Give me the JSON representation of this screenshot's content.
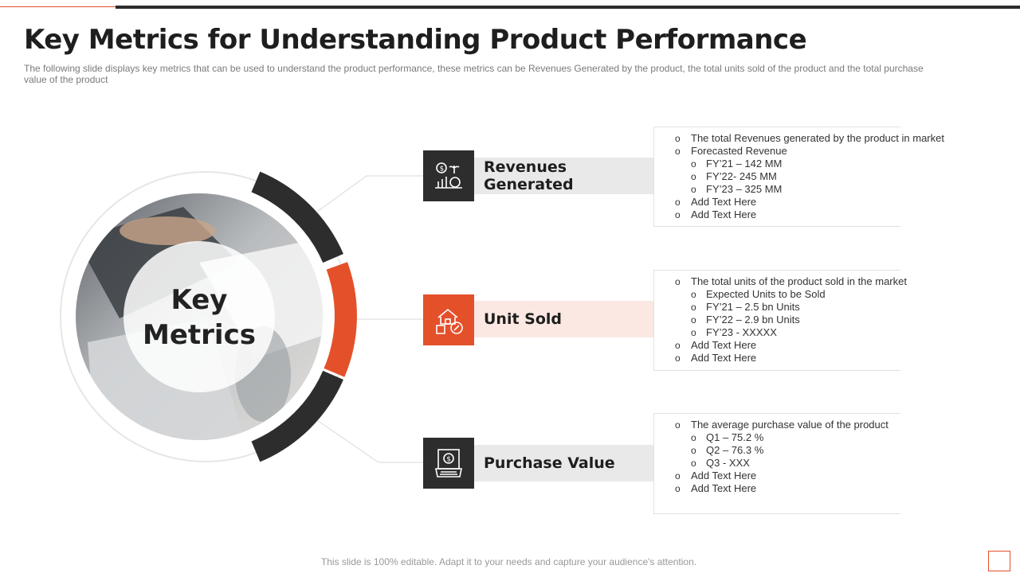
{
  "slide": {
    "title": "Key Metrics for Understanding Product Performance",
    "subtitle": "The following slide displays key metrics that can be used to understand the product performance, these metrics can be Revenues Generated by the product, the total units sold of the product and the total purchase value of the product",
    "footer": "This slide is 100% editable. Adapt it to your needs and capture your audience's attention."
  },
  "center": {
    "line1": "Key",
    "line2": "Metrics",
    "photo_icon": "business-meeting-photo"
  },
  "colors": {
    "dark": "#2d2d2d",
    "accent": "#e4502a",
    "grey_bar": "#e9e9e9",
    "pink_bar": "#fbe8e2"
  },
  "metrics": [
    {
      "label": "Revenues Generated",
      "icon": "revenue-growth-icon",
      "bullets": [
        {
          "level": 1,
          "text": "The total Revenues  generated  by the product  in market"
        },
        {
          "level": 1,
          "text": "Forecasted Revenue"
        },
        {
          "level": 2,
          "text": "FY’21 – 142 MM"
        },
        {
          "level": 2,
          "text": "FY’22- 245 MM"
        },
        {
          "level": 2,
          "text": "FY’23 – 325 MM"
        },
        {
          "level": 1,
          "text": "Add Text Here"
        },
        {
          "level": 1,
          "text": "Add Text Here"
        }
      ]
    },
    {
      "label": "Unit Sold",
      "icon": "units-sold-icon",
      "bullets": [
        {
          "level": 1,
          "text": "The total units of the product  sold in the market"
        },
        {
          "level": 2,
          "text": "Expected Units to be  Sold"
        },
        {
          "level": 2,
          "text": "FY’21 – 2.5 bn Units"
        },
        {
          "level": 2,
          "text": "FY’22 – 2.9 bn Units"
        },
        {
          "level": 2,
          "text": "FY’23 - XXXXX"
        },
        {
          "level": 1,
          "text": "Add Text Here"
        },
        {
          "level": 1,
          "text": "Add Text Here"
        }
      ]
    },
    {
      "label": "Purchase Value",
      "icon": "payment-terminal-icon",
      "bullets": [
        {
          "level": 1,
          "text": "The average  purchase value  of the product"
        },
        {
          "level": 2,
          "text": "Q1 – 75.2 %"
        },
        {
          "level": 2,
          "text": "Q2 – 76.3 %"
        },
        {
          "level": 2,
          "text": "Q3 - XXX"
        },
        {
          "level": 1,
          "text": "Add Text Here"
        },
        {
          "level": 1,
          "text": "Add Text Here"
        }
      ]
    }
  ]
}
